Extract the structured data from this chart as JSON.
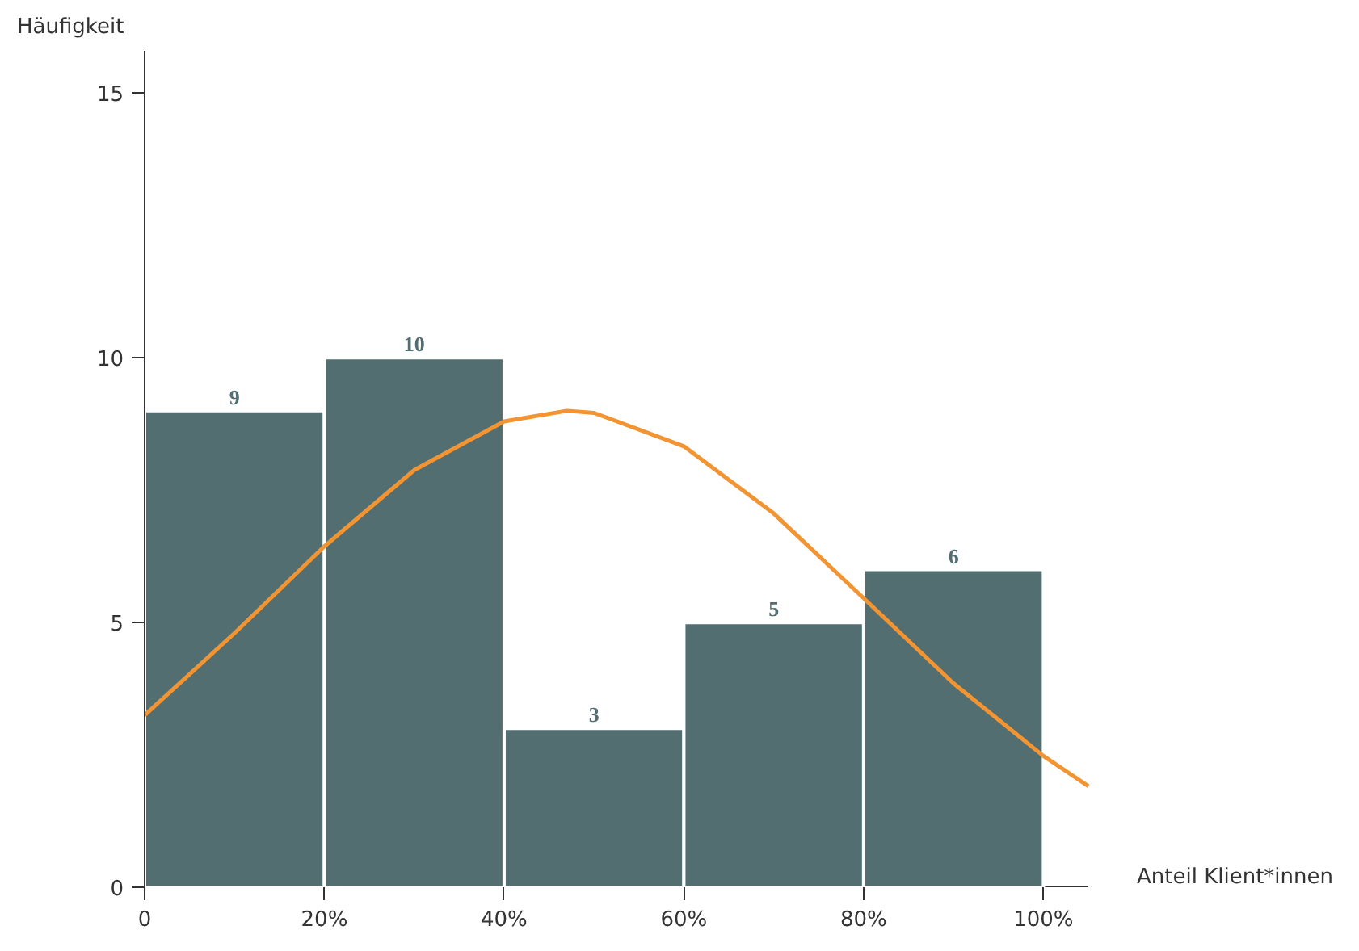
{
  "chart_data": {
    "type": "histogram",
    "ylabel": "Häufigkeit",
    "xlabel": "Anteil Klient*innen",
    "bins": [
      0,
      20,
      40,
      60,
      80,
      100
    ],
    "values": [
      9,
      10,
      3,
      5,
      6
    ],
    "color": "#526e70",
    "value_labels": [
      "9",
      "10",
      "3",
      "5",
      "6"
    ],
    "series": [
      {
        "type": "line",
        "color": "#f39433",
        "x": [
          0,
          10,
          20,
          30,
          40,
          47,
          50,
          60,
          70,
          80,
          90,
          100,
          105
        ],
        "values": [
          3.25,
          4.8,
          6.44,
          7.88,
          8.8,
          9,
          8.96,
          8.33,
          7.06,
          5.46,
          3.85,
          2.48,
          1.91
        ]
      }
    ],
    "xlim": [
      0,
      105
    ],
    "ylim": [
      0,
      15.8
    ],
    "xticks": [
      0,
      {
        "value": 20,
        "label": "20%"
      },
      {
        "value": 40,
        "label": "40%"
      },
      {
        "value": 60,
        "label": "60%"
      },
      {
        "value": 80,
        "label": "80%"
      },
      {
        "value": 100,
        "label": "100%"
      }
    ],
    "yticks": [
      0,
      5,
      10,
      15
    ],
    "grid": false
  }
}
